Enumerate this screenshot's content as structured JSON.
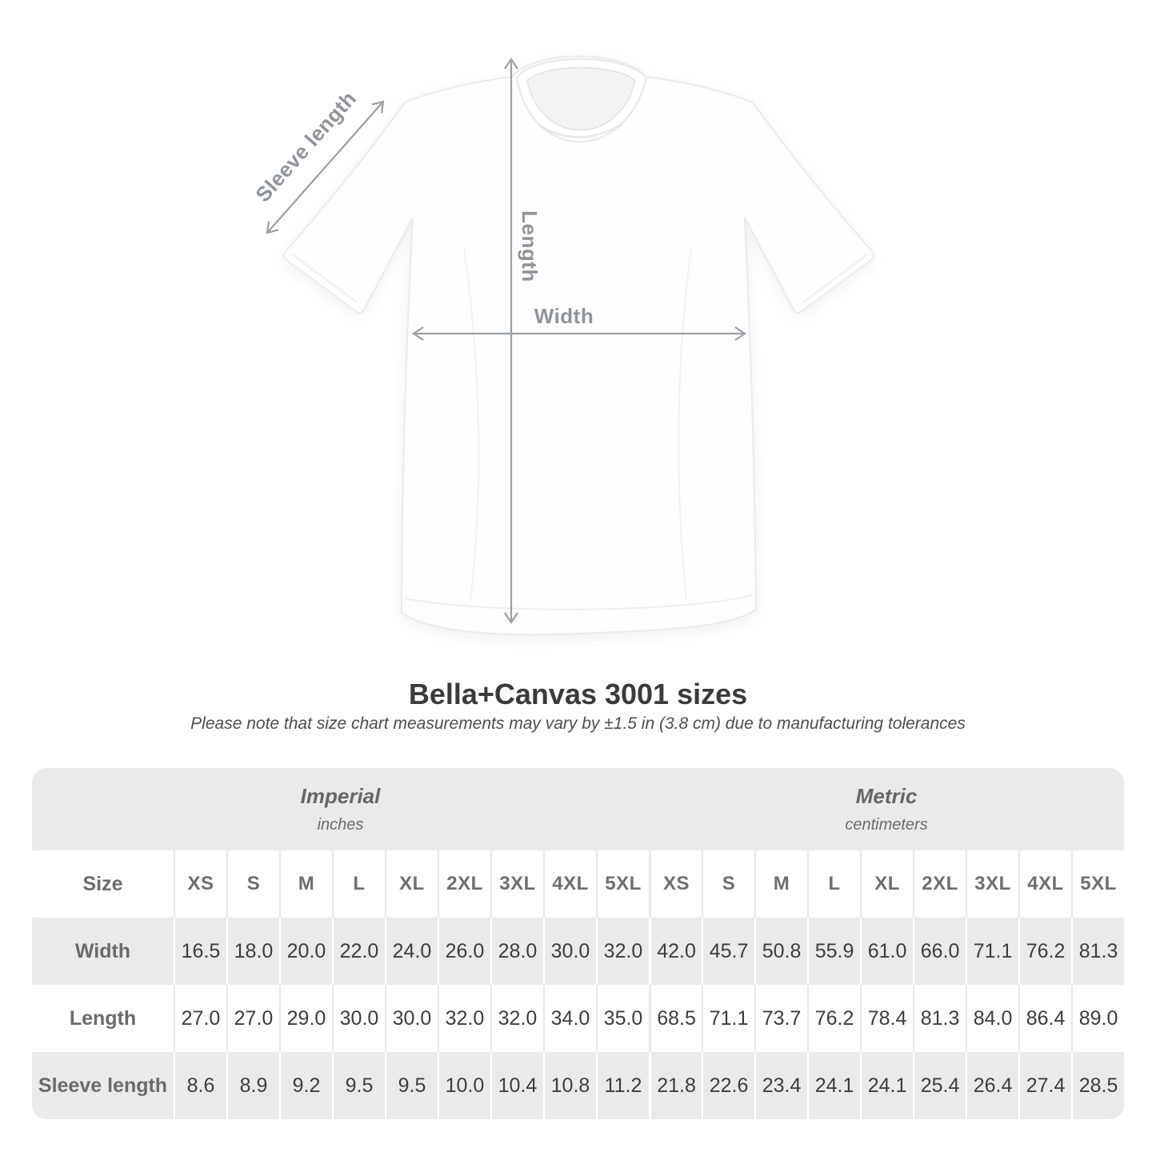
{
  "diagram": {
    "labels": {
      "sleeve": "Sleeve length",
      "length": "Length",
      "width": "Width"
    },
    "arrow_color": "#9aa0a4",
    "label_color": "#8f9499"
  },
  "heading": {
    "title": "Bella+Canvas 3001 sizes",
    "note": "Please note that size chart measurements may vary by ±1.5 in (3.8 cm) due to manufacturing tolerances"
  },
  "size_table": {
    "header_bg": "#eaeaea",
    "alt_row_bg": "#eaeaea",
    "unit_groups": [
      {
        "name": "Imperial",
        "unit": "inches"
      },
      {
        "name": "Metric",
        "unit": "centimeters"
      }
    ],
    "size_col_header": "Size",
    "sizes": [
      "XS",
      "S",
      "M",
      "L",
      "XL",
      "2XL",
      "3XL",
      "4XL",
      "5XL"
    ],
    "rows": [
      {
        "label": "Width",
        "imperial": [
          "16.5",
          "18.0",
          "20.0",
          "22.0",
          "24.0",
          "26.0",
          "28.0",
          "30.0",
          "32.0"
        ],
        "metric": [
          "42.0",
          "45.7",
          "50.8",
          "55.9",
          "61.0",
          "66.0",
          "71.1",
          "76.2",
          "81.3"
        ]
      },
      {
        "label": "Length",
        "imperial": [
          "27.0",
          "27.0",
          "29.0",
          "30.0",
          "30.0",
          "32.0",
          "32.0",
          "34.0",
          "35.0"
        ],
        "metric": [
          "68.5",
          "71.1",
          "73.7",
          "76.2",
          "78.4",
          "81.3",
          "84.0",
          "86.4",
          "89.0"
        ]
      },
      {
        "label": "Sleeve length",
        "imperial": [
          "8.6",
          "8.9",
          "9.2",
          "9.5",
          "9.5",
          "10.0",
          "10.4",
          "10.8",
          "11.2"
        ],
        "metric": [
          "21.8",
          "22.6",
          "23.4",
          "24.1",
          "24.1",
          "25.4",
          "26.4",
          "27.4",
          "28.5"
        ]
      }
    ]
  },
  "chart_data": {
    "type": "table",
    "title": "Bella+Canvas 3001 sizes",
    "subtitle": "Please note that size chart measurements may vary by ±1.5 in (3.8 cm) due to manufacturing tolerances",
    "column_groups": [
      "Imperial (inches)",
      "Metric (centimeters)"
    ],
    "columns": [
      "Size",
      "XS",
      "S",
      "M",
      "L",
      "XL",
      "2XL",
      "3XL",
      "4XL",
      "5XL",
      "XS",
      "S",
      "M",
      "L",
      "XL",
      "2XL",
      "3XL",
      "4XL",
      "5XL"
    ],
    "rows": [
      [
        "Width",
        16.5,
        18.0,
        20.0,
        22.0,
        24.0,
        26.0,
        28.0,
        30.0,
        32.0,
        42.0,
        45.7,
        50.8,
        55.9,
        61.0,
        66.0,
        71.1,
        76.2,
        81.3
      ],
      [
        "Length",
        27.0,
        27.0,
        29.0,
        30.0,
        30.0,
        32.0,
        32.0,
        34.0,
        35.0,
        68.5,
        71.1,
        73.7,
        76.2,
        78.4,
        81.3,
        84.0,
        86.4,
        89.0
      ],
      [
        "Sleeve length",
        8.6,
        8.9,
        9.2,
        9.5,
        9.5,
        10.0,
        10.4,
        10.8,
        11.2,
        21.8,
        22.6,
        23.4,
        24.1,
        24.1,
        25.4,
        26.4,
        27.4,
        28.5
      ]
    ]
  }
}
